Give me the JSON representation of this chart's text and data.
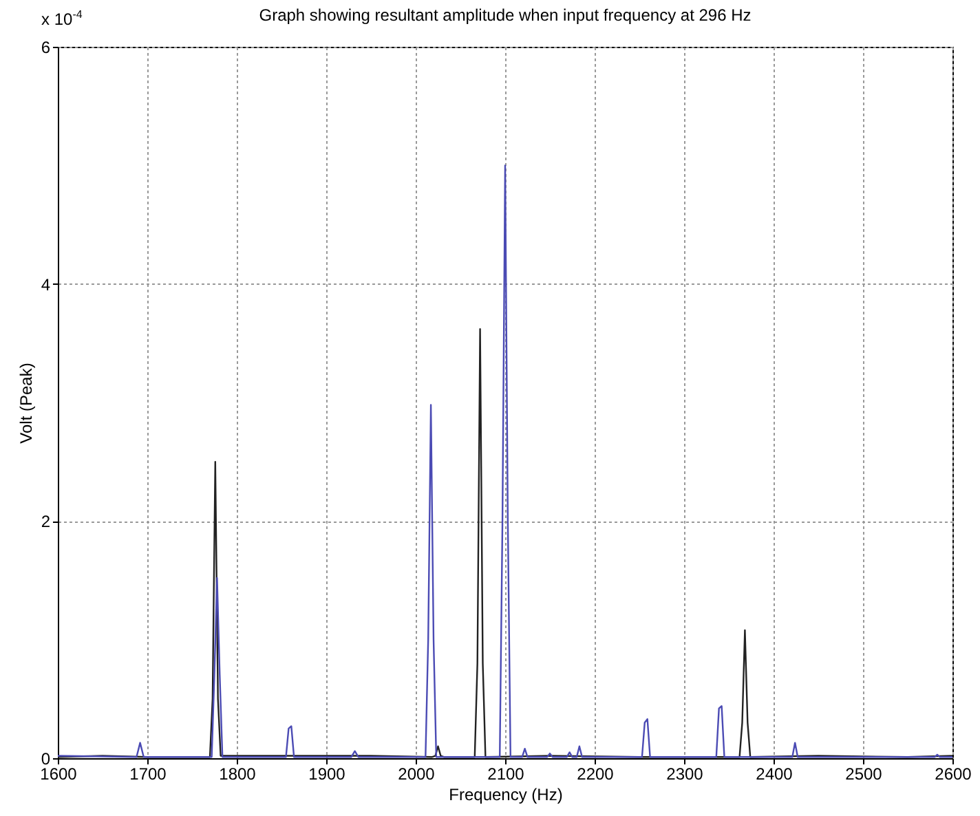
{
  "chart_data": {
    "type": "line",
    "title": "Graph showing resultant amplitude when input frequency at 296 Hz",
    "xlabel": "Frequency (Hz)",
    "ylabel": "Volt (Peak)",
    "annotations": [
      "x 10$^{-4}$"
    ],
    "xlim": [
      1600,
      2600
    ],
    "xticks": [
      1600,
      1700,
      1800,
      1900,
      2000,
      2100,
      2200,
      2300,
      2400,
      2500,
      2600
    ],
    "ylim": [
      0,
      6
    ],
    "yticks": [
      0,
      2,
      4,
      6
    ],
    "grid": true,
    "line_style": "solid",
    "series": [
      {
        "color": "#222222",
        "x": [
          1600,
          1650,
          1700,
          1770,
          1773,
          1776,
          1779,
          1782,
          1850,
          1950,
          2018,
          2022,
          2025,
          2028,
          2032,
          2066,
          2069,
          2072,
          2075,
          2078,
          2150,
          2250,
          2362,
          2365,
          2368,
          2371,
          2374,
          2450,
          2550,
          2600
        ],
        "values": [
          0.01,
          0.02,
          0.01,
          0.01,
          0.5,
          2.5,
          0.5,
          0.02,
          0.02,
          0.02,
          0.01,
          0.02,
          0.1,
          0.02,
          0.01,
          0.01,
          0.8,
          3.62,
          0.8,
          0.01,
          0.02,
          0.01,
          0.01,
          0.3,
          1.08,
          0.3,
          0.01,
          0.02,
          0.01,
          0.02
        ]
      },
      {
        "color": "#4b4bb4",
        "x": [
          1600,
          1688,
          1692,
          1696,
          1772,
          1775,
          1778,
          1781,
          1784,
          1855,
          1858,
          1861,
          1864,
          1928,
          1932,
          1936,
          2011,
          2014,
          2017,
          2020,
          2023,
          2094,
          2097,
          2100,
          2103,
          2106,
          2119,
          2122,
          2125,
          2147,
          2150,
          2153,
          2169,
          2172,
          2175,
          2180,
          2183,
          2186,
          2253,
          2256,
          2259,
          2262,
          2336,
          2339,
          2342,
          2345,
          2421,
          2424,
          2427,
          2580,
          2583,
          2586,
          2600
        ],
        "values": [
          0.02,
          0.01,
          0.13,
          0.01,
          0.01,
          0.7,
          1.52,
          0.7,
          0.01,
          0.01,
          0.25,
          0.27,
          0.01,
          0.01,
          0.06,
          0.01,
          0.01,
          1.0,
          2.98,
          1.0,
          0.01,
          0.01,
          2.0,
          5.0,
          2.0,
          0.01,
          0.01,
          0.08,
          0.01,
          0.01,
          0.04,
          0.01,
          0.01,
          0.05,
          0.01,
          0.01,
          0.1,
          0.01,
          0.01,
          0.3,
          0.33,
          0.01,
          0.01,
          0.42,
          0.44,
          0.01,
          0.01,
          0.13,
          0.01,
          0.01,
          0.03,
          0.01,
          0.01
        ]
      }
    ]
  }
}
